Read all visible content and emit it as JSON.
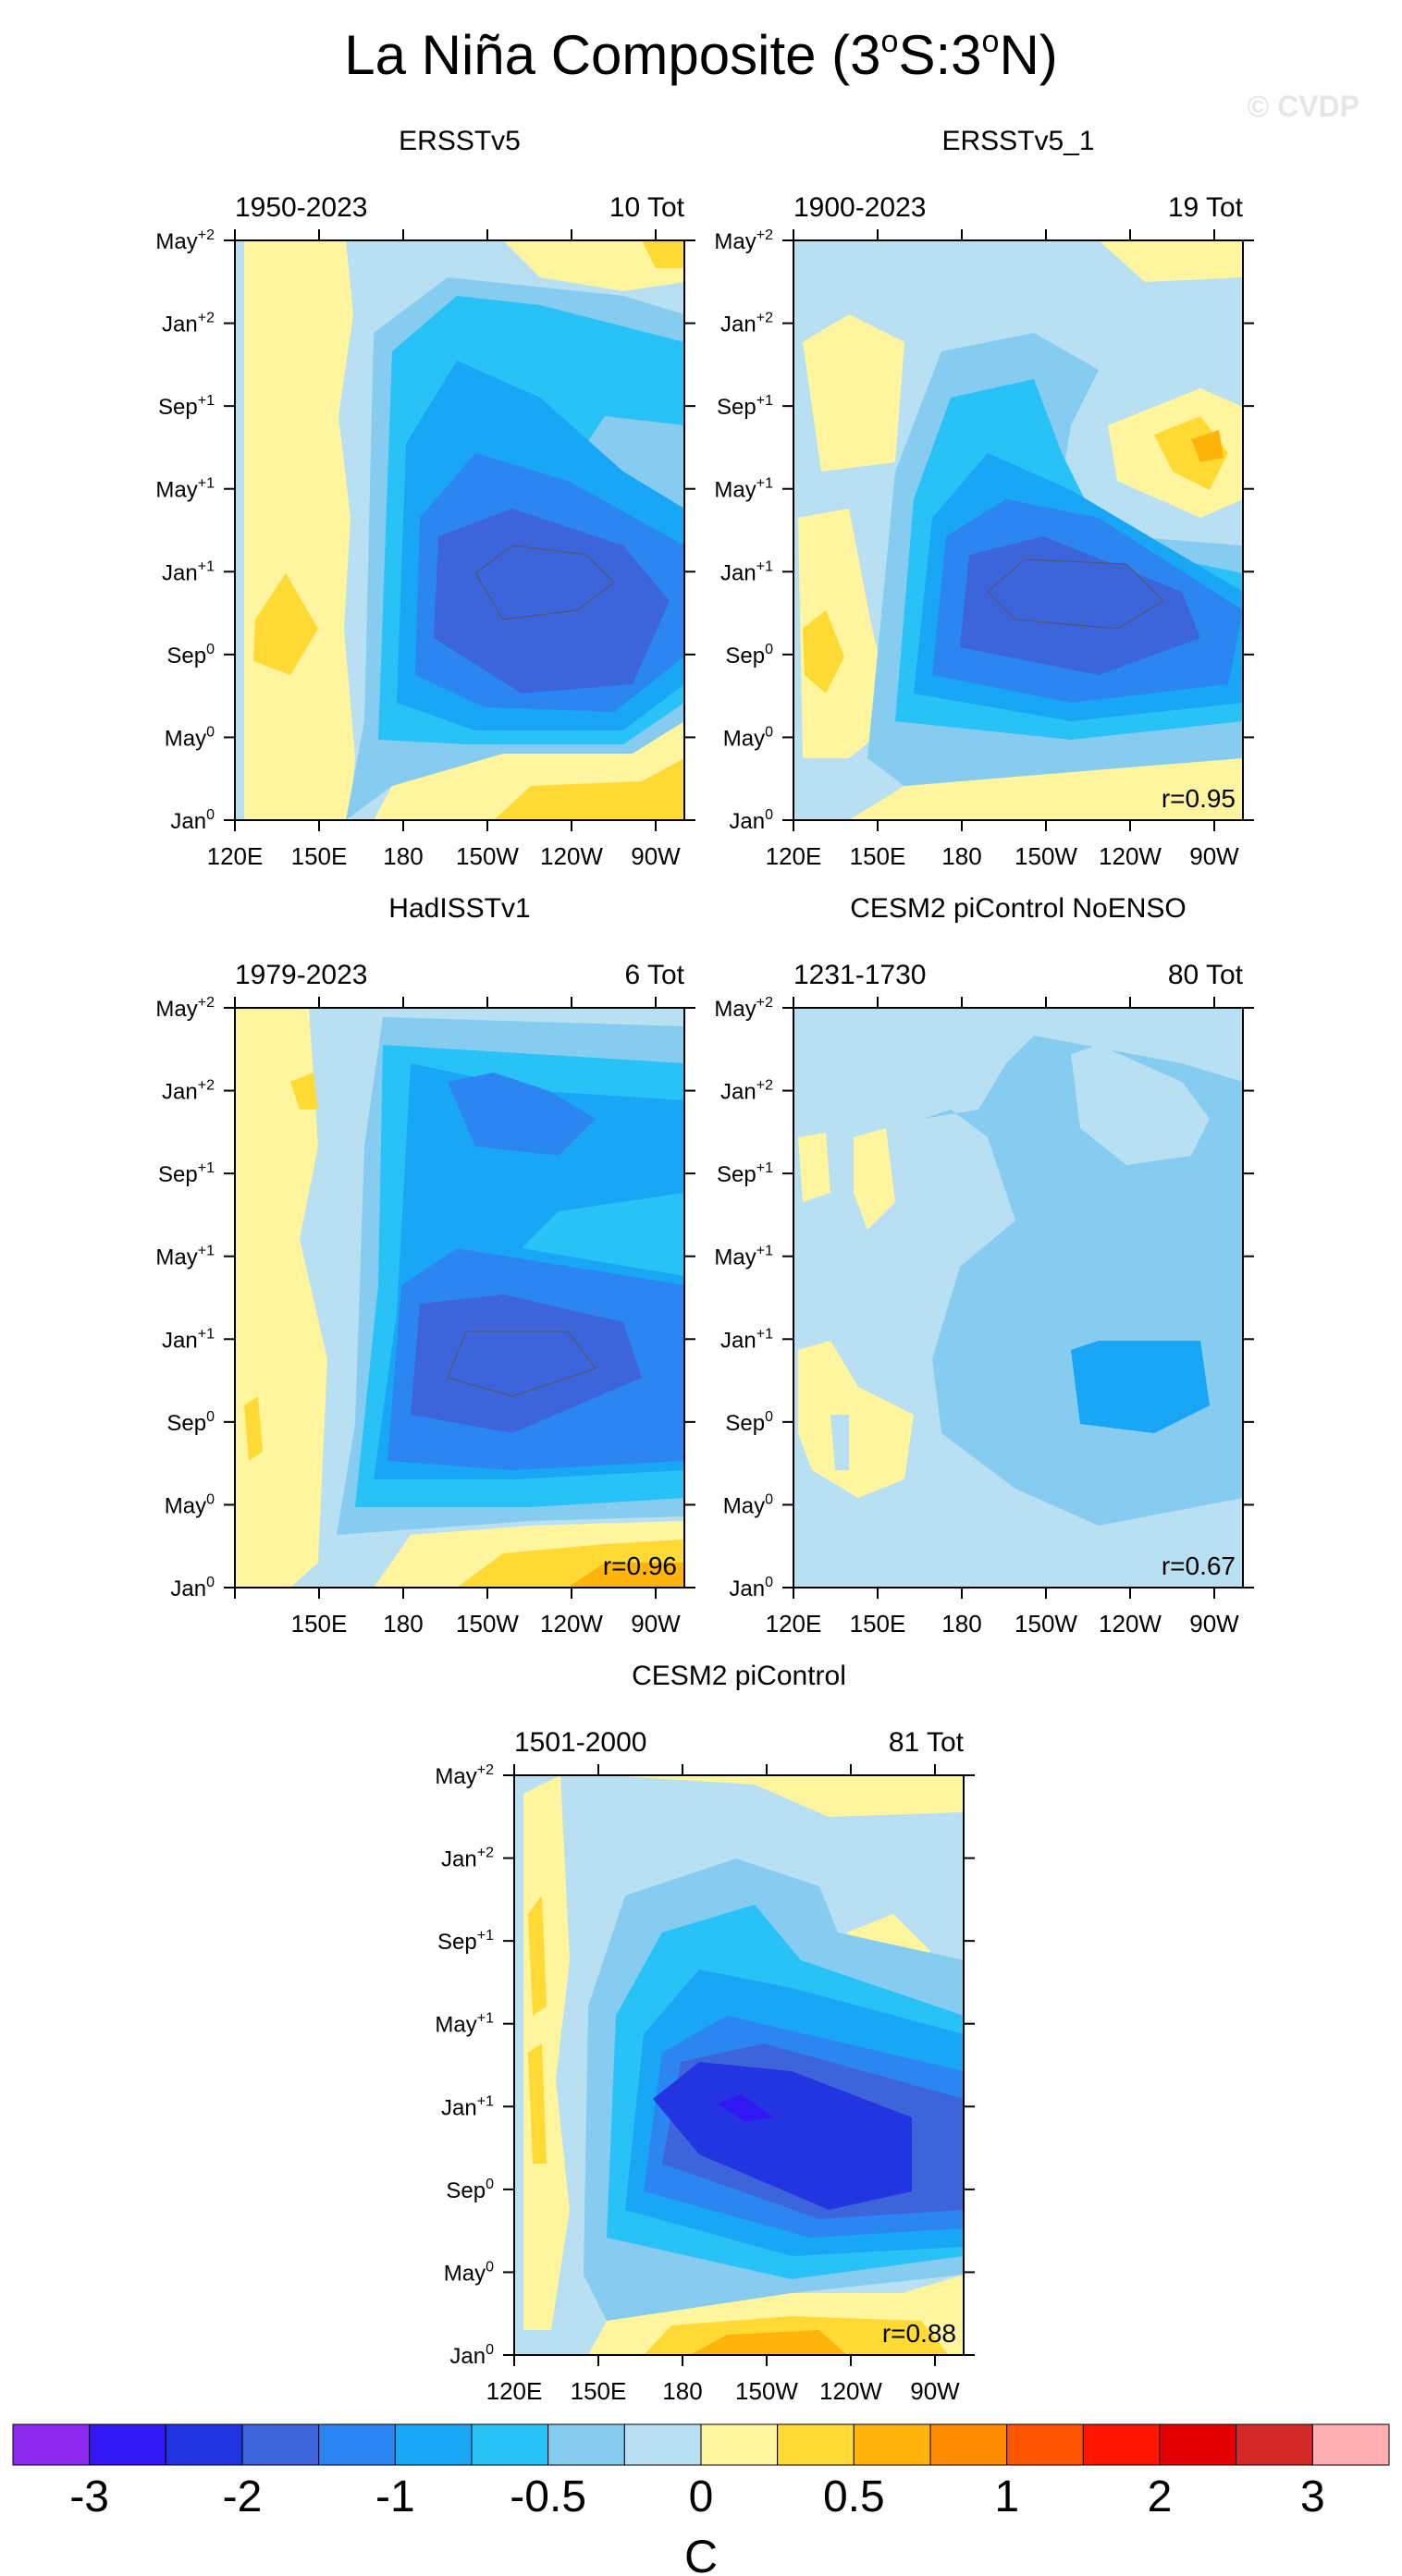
{
  "figure": {
    "title_main": "La Niña Composite (3",
    "title_o1": "o",
    "title_mid": "S:3",
    "title_o2": "o",
    "title_end": "N)",
    "watermark": "© CVDP"
  },
  "panels": [
    {
      "title": "ERSSTv5",
      "years": "1950-2023",
      "count": "10 Tot",
      "corr": "",
      "xticks": [
        "120E",
        "150E",
        "180",
        "150W",
        "120W",
        "90W"
      ]
    },
    {
      "title": "ERSSTv5_1",
      "years": "1900-2023",
      "count": "19 Tot",
      "corr": "r=0.95",
      "xticks": [
        "120E",
        "150E",
        "180",
        "150W",
        "120W",
        "90W"
      ]
    },
    {
      "title": "HadISSTv1",
      "years": "1979-2023",
      "count": "6 Tot",
      "corr": "r=0.96",
      "xticks": [
        "",
        "150E",
        "180",
        "150W",
        "120W",
        "90W"
      ]
    },
    {
      "title": "CESM2 piControl NoENSO",
      "years": "1231-1730",
      "count": "80 Tot",
      "corr": "r=0.67",
      "xticks": [
        "120E",
        "150E",
        "180",
        "150W",
        "120W",
        "90W"
      ]
    },
    {
      "title": "CESM2 piControl",
      "years": "1501-2000",
      "count": "81 Tot",
      "corr": "r=0.88",
      "xticks": [
        "120E",
        "150E",
        "180",
        "150W",
        "120W",
        "90W"
      ]
    }
  ],
  "yticks": [
    {
      "m": "Jan",
      "s": "0"
    },
    {
      "m": "May",
      "s": "0"
    },
    {
      "m": "Sep",
      "s": "0"
    },
    {
      "m": "Jan",
      "s": "+1"
    },
    {
      "m": "May",
      "s": "+1"
    },
    {
      "m": "Sep",
      "s": "+1"
    },
    {
      "m": "Jan",
      "s": "+2"
    },
    {
      "m": "May",
      "s": "+2"
    }
  ],
  "colorbar": {
    "unit": "C",
    "labels": [
      "-3",
      "-2",
      "-1",
      "-0.5",
      "0",
      "0.5",
      "1",
      "2",
      "3"
    ],
    "colors": [
      "#8d2cf0",
      "#3217f5",
      "#2335e0",
      "#3c65dc",
      "#2b86f2",
      "#18a6f5",
      "#28c2f7",
      "#86cbf0",
      "#b9e0f2",
      "#fff59f",
      "#ffd934",
      "#ffb40c",
      "#ff8c00",
      "#ff5700",
      "#ff1500",
      "#e20000",
      "#d42a2a",
      "#ffaeb4"
    ]
  },
  "chart_data": [
    {
      "type": "heatmap",
      "title": "ERSSTv5",
      "x_range": [
        "120E",
        "80W"
      ],
      "y_range": [
        "Jan0",
        "May+2"
      ],
      "levels": [
        -3,
        -2.5,
        -2,
        -1.5,
        -1,
        -0.75,
        -0.5,
        -0.25,
        0,
        0.25,
        0.5,
        0.75,
        1,
        1.5,
        2,
        2.5,
        3
      ],
      "features": {
        "min_anom_approx": -1.75,
        "center": "160W Nov0-Jan+1",
        "warm_west": 0.4
      }
    },
    {
      "type": "heatmap",
      "title": "ERSSTv5_1",
      "corr": 0.95
    },
    {
      "type": "heatmap",
      "title": "HadISSTv1",
      "corr": 0.96
    },
    {
      "type": "heatmap",
      "title": "CESM2 piControl NoENSO",
      "corr": 0.67
    },
    {
      "type": "heatmap",
      "title": "CESM2 piControl",
      "corr": 0.88
    }
  ]
}
